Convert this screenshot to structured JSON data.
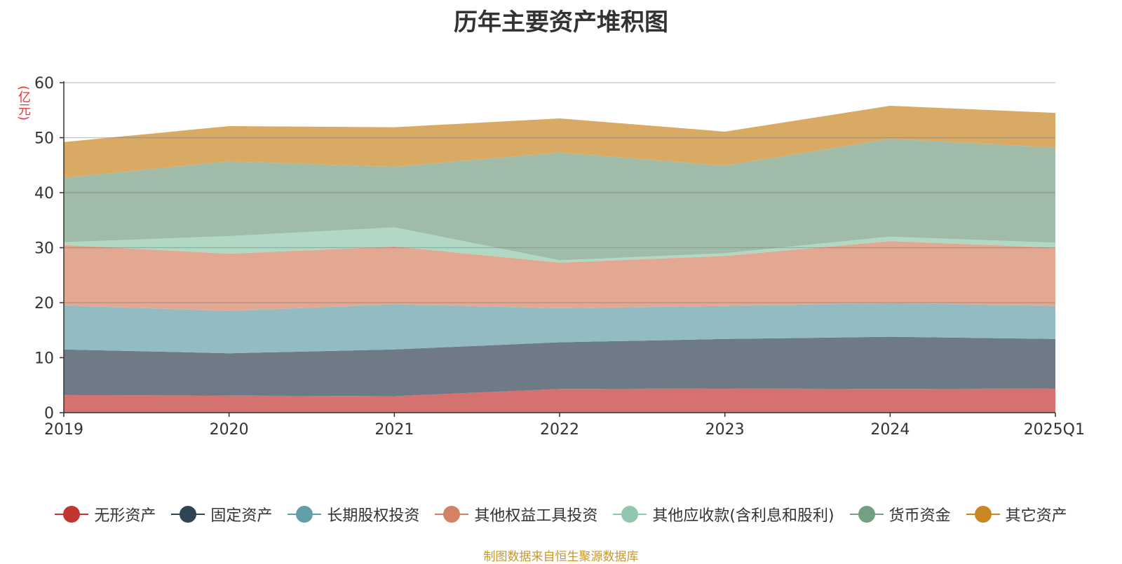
{
  "chart_data": {
    "type": "area",
    "stacked": true,
    "title": "历年主要资产堆积图",
    "unit": "(亿元)",
    "categories": [
      "2019",
      "2020",
      "2021",
      "2022",
      "2023",
      "2024",
      "2025Q1"
    ],
    "ylim": [
      0,
      60
    ],
    "yticks": [
      0,
      10,
      20,
      30,
      40,
      50,
      60
    ],
    "grid": true,
    "legend_position": "bottom",
    "series": [
      {
        "name": "无形资产",
        "color": "#d5716e",
        "legend_color": "#c23531",
        "values": [
          3.2,
          3.1,
          3.0,
          4.3,
          4.4,
          4.3,
          4.4
        ]
      },
      {
        "name": "固定资产",
        "color": "#6e7b86",
        "legend_color": "#2f4554",
        "values": [
          8.3,
          7.7,
          8.5,
          8.5,
          9.0,
          9.5,
          9.0
        ]
      },
      {
        "name": "长期股权投资",
        "color": "#92bcc2",
        "legend_color": "#61a0a8",
        "values": [
          8.0,
          7.7,
          8.2,
          6.2,
          6.0,
          6.1,
          6.0
        ]
      },
      {
        "name": "其他权益工具投资",
        "color": "#e2a892",
        "legend_color": "#d48265",
        "values": [
          11.0,
          10.4,
          10.5,
          8.3,
          9.1,
          11.3,
          10.6
        ]
      },
      {
        "name": "其他应收款(含利息和股利)",
        "color": "#b0d8c5",
        "legend_color": "#91c7ae",
        "values": [
          0.5,
          3.2,
          3.5,
          0.4,
          0.5,
          0.8,
          0.9
        ]
      },
      {
        "name": "货币资金",
        "color": "#a0bca8",
        "legend_color": "#749f83",
        "values": [
          11.7,
          13.6,
          11.0,
          19.6,
          15.9,
          17.8,
          17.3
        ]
      },
      {
        "name": "其它资产",
        "color": "#d9aa63",
        "legend_color": "#ca8622",
        "values": [
          6.5,
          6.4,
          7.2,
          6.2,
          6.2,
          6.0,
          6.3
        ]
      }
    ]
  },
  "source_note": "制图数据来自恒生聚源数据库"
}
